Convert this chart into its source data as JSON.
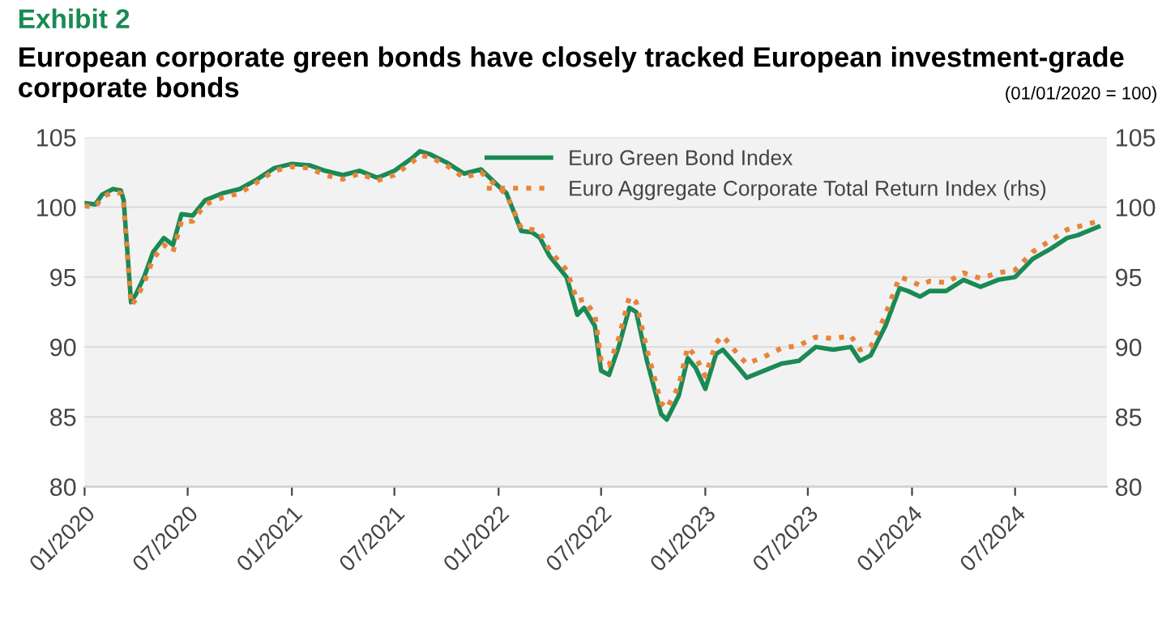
{
  "chart_data": {
    "type": "line",
    "title": "European corporate green bonds have closely tracked European investment-grade corporate bonds",
    "subtitle": "(01/01/2020 = 100)",
    "annotations": [
      "Exhibit 2"
    ],
    "x": [
      "2020-01-01",
      "2020-01-20",
      "2020-02-01",
      "2020-02-20",
      "2020-03-05",
      "2020-03-10",
      "2020-03-18",
      "2020-03-23",
      "2020-04-01",
      "2020-04-15",
      "2020-05-01",
      "2020-05-20",
      "2020-06-05",
      "2020-06-20",
      "2020-07-10",
      "2020-08-01",
      "2020-09-01",
      "2020-10-01",
      "2020-11-01",
      "2020-12-01",
      "2021-01-01",
      "2021-02-01",
      "2021-03-01",
      "2021-04-01",
      "2021-05-01",
      "2021-06-01",
      "2021-07-01",
      "2021-08-01",
      "2021-08-15",
      "2021-09-01",
      "2021-10-01",
      "2021-11-01",
      "2021-12-01",
      "2022-01-01",
      "2022-01-15",
      "2022-02-10",
      "2022-03-01",
      "2022-03-15",
      "2022-04-01",
      "2022-05-01",
      "2022-05-20",
      "2022-06-01",
      "2022-06-20",
      "2022-07-01",
      "2022-07-15",
      "2022-08-01",
      "2022-08-20",
      "2022-09-01",
      "2022-09-20",
      "2022-10-15",
      "2022-10-25",
      "2022-11-15",
      "2022-12-01",
      "2022-12-15",
      "2023-01-01",
      "2023-01-20",
      "2023-02-01",
      "2023-03-01",
      "2023-03-15",
      "2023-04-15",
      "2023-05-15",
      "2023-06-15",
      "2023-07-15",
      "2023-08-15",
      "2023-09-15",
      "2023-10-01",
      "2023-10-20",
      "2023-11-15",
      "2023-12-10",
      "2023-12-25",
      "2024-01-15",
      "2024-02-01",
      "2024-03-01",
      "2024-04-01",
      "2024-05-01",
      "2024-06-01",
      "2024-07-01",
      "2024-08-01",
      "2024-09-01",
      "2024-10-01",
      "2024-10-20",
      "2024-11-25"
    ],
    "series": [
      {
        "name": "Euro Green Bond Index",
        "color": "#1a8a55",
        "line_style": "solid",
        "values": [
          100.3,
          100.2,
          100.9,
          101.3,
          101.2,
          100.5,
          96,
          93.2,
          93.8,
          95,
          96.8,
          97.8,
          97.3,
          99.5,
          99.4,
          100.5,
          101.0,
          101.3,
          102.0,
          102.8,
          103.1,
          103.0,
          102.6,
          102.3,
          102.6,
          102.1,
          102.6,
          103.5,
          104.0,
          103.8,
          103.2,
          102.4,
          102.7,
          101.5,
          101.0,
          98.3,
          98.2,
          97.8,
          96.5,
          95.0,
          92.3,
          92.8,
          91.5,
          88.3,
          88.0,
          90.0,
          92.8,
          92.5,
          89.0,
          85.2,
          84.8,
          86.5,
          89.2,
          88.5,
          87.0,
          89.5,
          89.8,
          88.5,
          87.8,
          88.3,
          88.8,
          89.0,
          90.0,
          89.8,
          90.0,
          89.0,
          89.4,
          91.5,
          94.2,
          94.0,
          93.6,
          94.0,
          94.0,
          94.8,
          94.3,
          94.8,
          95.0,
          96.3,
          97.0,
          97.8,
          98.0,
          98.6
        ]
      },
      {
        "name": "Euro Aggregate Corporate Total Return Index (rhs)",
        "color": "#e8843a",
        "line_style": "dotted",
        "axis": "y2",
        "values": [
          100.1,
          100.0,
          100.7,
          101.1,
          101.0,
          100.2,
          95.8,
          93.0,
          93.4,
          94.6,
          96.3,
          97.3,
          96.8,
          99.0,
          99.0,
          100.2,
          100.7,
          101.0,
          101.8,
          102.6,
          102.9,
          102.8,
          102.3,
          102.0,
          102.4,
          101.9,
          102.3,
          103.2,
          103.7,
          103.6,
          103.0,
          102.1,
          102.5,
          101.4,
          100.9,
          98.5,
          98.4,
          98.2,
          96.9,
          95.5,
          93.3,
          93.4,
          92.3,
          89.0,
          88.7,
          90.6,
          93.6,
          93.2,
          89.8,
          86.0,
          85.6,
          87.2,
          90.0,
          89.3,
          87.9,
          90.3,
          90.8,
          89.4,
          88.8,
          89.3,
          89.9,
          90.1,
          90.7,
          90.6,
          90.8,
          89.8,
          90.0,
          92.3,
          95.0,
          94.8,
          94.4,
          94.7,
          94.6,
          95.3,
          94.9,
          95.3,
          95.5,
          96.8,
          97.6,
          98.4,
          98.6,
          99.0
        ]
      }
    ],
    "xlim": [
      "2020-01-01",
      "2024-12-10"
    ],
    "xticks": [
      {
        "value": "2020-01-01",
        "label": "01/2020"
      },
      {
        "value": "2020-07-01",
        "label": "07/2020"
      },
      {
        "value": "2021-01-01",
        "label": "01/2021"
      },
      {
        "value": "2021-07-01",
        "label": "07/2021"
      },
      {
        "value": "2022-01-01",
        "label": "01/2022"
      },
      {
        "value": "2022-07-01",
        "label": "07/2022"
      },
      {
        "value": "2023-01-01",
        "label": "01/2023"
      },
      {
        "value": "2023-07-01",
        "label": "07/2023"
      },
      {
        "value": "2024-01-01",
        "label": "01/2024"
      },
      {
        "value": "2024-07-01",
        "label": "07/2024"
      }
    ],
    "ylim": [
      80,
      105
    ],
    "yticks": [
      80,
      85,
      90,
      95,
      100,
      105
    ],
    "y2lim": [
      80,
      105
    ],
    "y2ticks": [
      80,
      85,
      90,
      95,
      100,
      105
    ],
    "grid": "y",
    "legend": "top right"
  }
}
